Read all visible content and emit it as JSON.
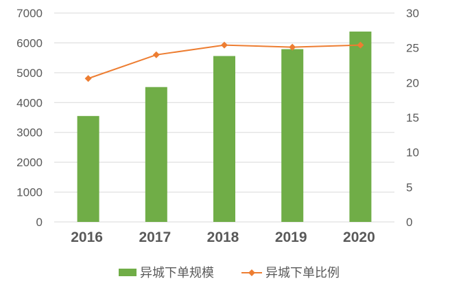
{
  "chart_data": {
    "type": "bar",
    "categories": [
      "2016",
      "2017",
      "2018",
      "2019",
      "2020"
    ],
    "series": [
      {
        "name": "异城下单规模",
        "type": "bar",
        "axis": "left",
        "color": "#70ad47",
        "values": [
          3550,
          4520,
          5560,
          5790,
          6380
        ]
      },
      {
        "name": "异城下单比例",
        "type": "line",
        "axis": "right",
        "color": "#ed7d31",
        "values": [
          20.6,
          24.0,
          25.4,
          25.1,
          25.4
        ]
      }
    ],
    "y_left": {
      "min": 0,
      "max": 7000,
      "ticks": [
        0,
        1000,
        2000,
        3000,
        4000,
        5000,
        6000,
        7000
      ]
    },
    "y_right": {
      "min": 0,
      "max": 30,
      "ticks": [
        0,
        5,
        10,
        15,
        20,
        25,
        30
      ]
    },
    "grid": true,
    "legend": "bottom"
  }
}
